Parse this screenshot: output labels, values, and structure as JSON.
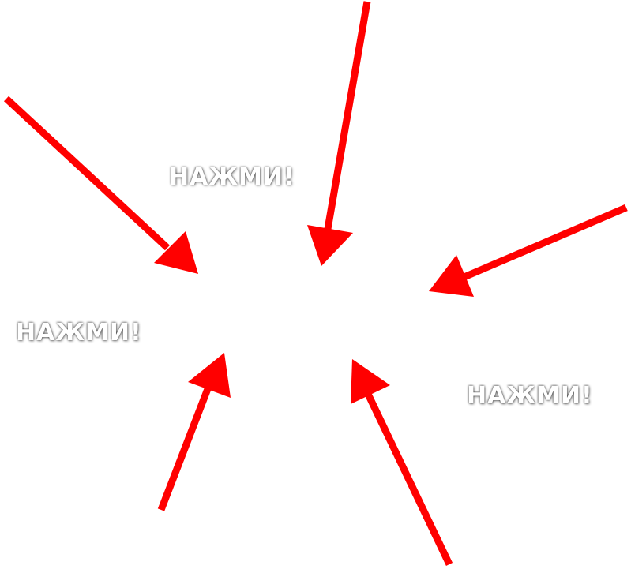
{
  "labels": {
    "top": "НАЖМИ!",
    "left": "НАЖМИ!",
    "right": "НАЖМИ!"
  },
  "colors": {
    "arrow": "#ff0000",
    "background": "#ffffff",
    "label_text": "#ffffff"
  },
  "arrows": [
    {
      "name": "arrow-from-top-left",
      "icon": "arrow-icon"
    },
    {
      "name": "arrow-from-top",
      "icon": "arrow-icon"
    },
    {
      "name": "arrow-from-right",
      "icon": "arrow-icon"
    },
    {
      "name": "arrow-from-bottom-left",
      "icon": "arrow-icon"
    },
    {
      "name": "arrow-from-bottom-right",
      "icon": "arrow-icon"
    }
  ]
}
